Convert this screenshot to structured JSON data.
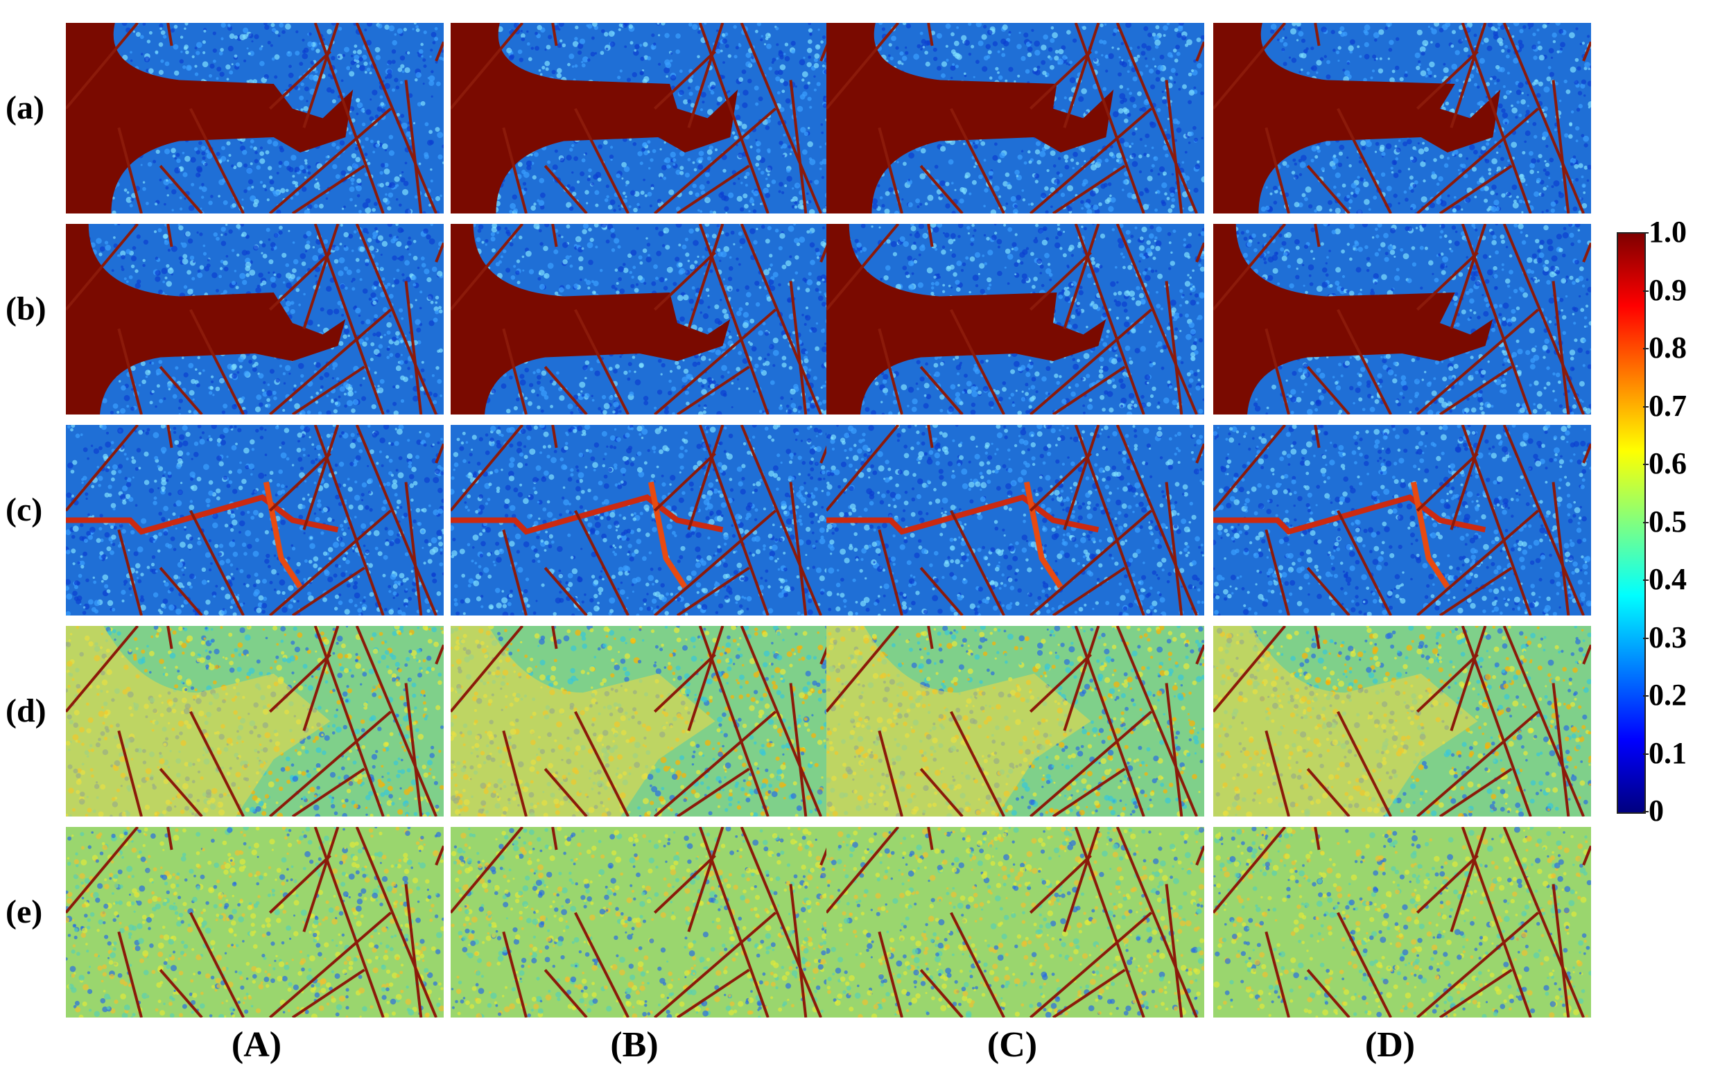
{
  "row_labels": [
    "(a)",
    "(b)",
    "(c)",
    "(d)",
    "(e)"
  ],
  "column_labels": [
    "(A)",
    "(B)",
    "(C)",
    "(D)"
  ],
  "colorbar": {
    "min": 0,
    "max": 1.0,
    "ticks": [
      "1.0",
      "0.9",
      "0.8",
      "0.7",
      "0.6",
      "0.5",
      "0.4",
      "0.3",
      "0.2",
      "0.1",
      "0"
    ],
    "colormap": "jet",
    "stops": [
      "#00007f",
      "#0000ff",
      "#0080ff",
      "#00ffff",
      "#80ff80",
      "#ffff00",
      "#ff8000",
      "#ff0000",
      "#7f0000"
    ]
  },
  "panel_style": {
    "background_color": "#1f6fd6",
    "speckle_colors": [
      "#3aa0ff",
      "#0b3fd0",
      "#7fe0ff"
    ],
    "fracture_color": "#8b1a0a",
    "flooded_color": "#7a0a00"
  }
}
